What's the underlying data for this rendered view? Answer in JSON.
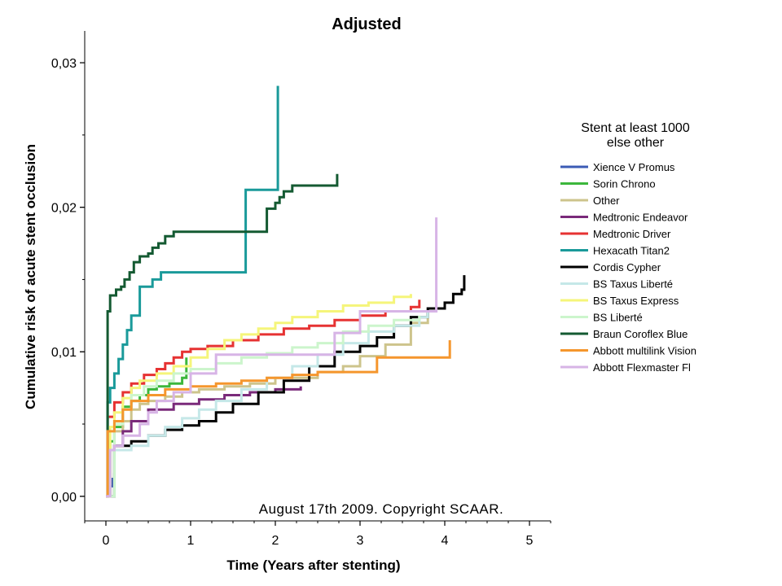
{
  "chart_data": {
    "type": "line",
    "title": "Adjusted",
    "xlabel": "Time (Years after stenting)",
    "ylabel": "Cumulative risk of acute stent occlusion",
    "xlim": [
      -0.25,
      5.25
    ],
    "ylim": [
      -0.0017,
      0.0322
    ],
    "x_ticks": [
      0,
      1,
      2,
      3,
      4,
      5
    ],
    "x_tick_labels": [
      "0",
      "1",
      "2",
      "3",
      "4",
      "5"
    ],
    "y_ticks": [
      0.0,
      0.01,
      0.02,
      0.03
    ],
    "y_tick_labels": [
      "0,00",
      "0,01",
      "0,02",
      "0,03"
    ],
    "grid": false,
    "annotation": "August 17th 2009. Copyright SCAAR.",
    "legend": {
      "title_line1": "Stent at least 1000",
      "title_line2": "else other",
      "position": "right"
    },
    "series": [
      {
        "name": "Xience V Promus",
        "color": "#3b5bb5",
        "x": [
          0,
          0.05,
          0.08,
          0.1
        ],
        "y": [
          0,
          0.0007,
          0.0012,
          0.0016
        ]
      },
      {
        "name": "Sorin Chrono",
        "color": "#3cb73c",
        "x": [
          0,
          0.05,
          0.1,
          0.2,
          0.3,
          0.4,
          0.5,
          0.6,
          0.75,
          0.9,
          0.95
        ],
        "y": [
          0,
          0.0038,
          0.0048,
          0.0062,
          0.0066,
          0.007,
          0.0074,
          0.0076,
          0.0078,
          0.0082,
          0.0096
        ]
      },
      {
        "name": "Other",
        "color": "#cdc48c",
        "x": [
          0,
          0.1,
          0.2,
          0.3,
          0.4,
          0.5,
          0.7,
          0.9,
          1.1,
          1.4,
          1.7,
          2.0,
          2.5,
          2.8,
          3.0,
          3.3,
          3.6,
          3.8
        ],
        "y": [
          0,
          0.0045,
          0.0052,
          0.006,
          0.0064,
          0.0066,
          0.0069,
          0.0072,
          0.0074,
          0.0076,
          0.0078,
          0.0082,
          0.0086,
          0.009,
          0.0097,
          0.0105,
          0.012,
          0.0128
        ]
      },
      {
        "name": "Medtronic Endeavor",
        "color": "#7a2a7a",
        "x": [
          0,
          0.1,
          0.2,
          0.3,
          0.5,
          0.8,
          1.1,
          1.4,
          1.7,
          2.0,
          2.3
        ],
        "y": [
          0,
          0.0035,
          0.0045,
          0.0052,
          0.006,
          0.0064,
          0.0067,
          0.007,
          0.0072,
          0.0074,
          0.0076
        ]
      },
      {
        "name": "Medtronic Driver",
        "color": "#e63232",
        "x": [
          0,
          0.02,
          0.1,
          0.2,
          0.3,
          0.45,
          0.6,
          0.7,
          0.8,
          0.9,
          1.0,
          1.2,
          1.5,
          1.8,
          2.1,
          2.4,
          2.7,
          3.0,
          3.3,
          3.6,
          3.7
        ],
        "y": [
          0,
          0.0055,
          0.0065,
          0.0072,
          0.0078,
          0.0084,
          0.0088,
          0.0092,
          0.0096,
          0.01,
          0.0102,
          0.0104,
          0.0108,
          0.0112,
          0.0116,
          0.0118,
          0.0122,
          0.0125,
          0.0128,
          0.0131,
          0.0136
        ]
      },
      {
        "name": "Hexacath Titan2",
        "color": "#1a9a9a",
        "x": [
          0,
          0.02,
          0.05,
          0.1,
          0.15,
          0.2,
          0.25,
          0.3,
          0.4,
          0.55,
          0.65,
          0.8,
          1.0,
          1.3,
          1.6,
          1.65,
          1.95,
          2.02,
          2.03
        ],
        "y": [
          0,
          0.0065,
          0.0075,
          0.0085,
          0.0095,
          0.0105,
          0.0115,
          0.0125,
          0.0145,
          0.015,
          0.0155,
          0.0155,
          0.0155,
          0.0155,
          0.0155,
          0.0212,
          0.0212,
          0.0212,
          0.0284
        ]
      },
      {
        "name": "Cordis Cypher",
        "color": "#000000",
        "x": [
          0,
          0.1,
          0.3,
          0.5,
          0.7,
          0.9,
          1.1,
          1.3,
          1.5,
          1.8,
          2.1,
          2.4,
          2.7,
          3.0,
          3.2,
          3.4,
          3.6,
          3.8,
          4.0,
          4.1,
          4.2,
          4.23
        ],
        "y": [
          0,
          0.0035,
          0.0038,
          0.0042,
          0.0046,
          0.0049,
          0.0052,
          0.0058,
          0.0064,
          0.0072,
          0.008,
          0.009,
          0.01,
          0.0104,
          0.011,
          0.0118,
          0.0124,
          0.013,
          0.0134,
          0.014,
          0.0143,
          0.0153
        ]
      },
      {
        "name": "BS Taxus Liberté",
        "color": "#c5e8e8",
        "x": [
          0,
          0.1,
          0.3,
          0.5,
          0.7,
          0.9,
          1.1,
          1.3,
          1.6,
          1.9,
          2.2,
          2.5,
          2.8,
          3.1,
          3.4,
          3.7,
          3.8
        ],
        "y": [
          0,
          0.0032,
          0.0035,
          0.0042,
          0.0048,
          0.0054,
          0.006,
          0.0066,
          0.0074,
          0.0082,
          0.009,
          0.0098,
          0.0106,
          0.0114,
          0.0118,
          0.0124,
          0.0128
        ]
      },
      {
        "name": "BS Taxus Express",
        "color": "#f5f57a",
        "x": [
          0,
          0.05,
          0.1,
          0.2,
          0.3,
          0.4,
          0.6,
          0.8,
          1.0,
          1.2,
          1.4,
          1.6,
          1.8,
          2.0,
          2.2,
          2.5,
          2.8,
          3.1,
          3.4,
          3.6
        ],
        "y": [
          0,
          0.0048,
          0.0058,
          0.0068,
          0.0075,
          0.008,
          0.0085,
          0.009,
          0.0096,
          0.0102,
          0.0108,
          0.0112,
          0.0116,
          0.012,
          0.0124,
          0.0128,
          0.0132,
          0.0134,
          0.0138,
          0.014
        ]
      },
      {
        "name": "BS Liberté",
        "color": "#ccf5cc",
        "x": [
          0,
          0.1,
          0.2,
          0.3,
          0.45,
          0.6,
          0.8,
          1.0,
          1.3,
          1.6,
          1.9,
          2.2,
          2.5,
          2.8,
          3.1,
          3.4,
          3.7
        ],
        "y": [
          0,
          0.005,
          0.006,
          0.007,
          0.0076,
          0.008,
          0.0085,
          0.0088,
          0.0092,
          0.0096,
          0.0099,
          0.0103,
          0.0106,
          0.0114,
          0.0118,
          0.0122,
          0.0125
        ]
      },
      {
        "name": "Braun Coroflex Blue",
        "color": "#145a32",
        "x": [
          0,
          0.02,
          0.05,
          0.12,
          0.18,
          0.22,
          0.28,
          0.33,
          0.4,
          0.5,
          0.55,
          0.62,
          0.7,
          0.8,
          0.9,
          1.5,
          1.85,
          1.9,
          2.0,
          2.05,
          2.1,
          2.2,
          2.3,
          2.45,
          2.72,
          2.73
        ],
        "y": [
          0,
          0.0128,
          0.0139,
          0.0143,
          0.0145,
          0.015,
          0.0155,
          0.0162,
          0.0166,
          0.0168,
          0.0172,
          0.0175,
          0.018,
          0.0183,
          0.0183,
          0.0183,
          0.0183,
          0.0199,
          0.0203,
          0.0207,
          0.0211,
          0.0215,
          0.0215,
          0.0215,
          0.0215,
          0.0223
        ]
      },
      {
        "name": "Abbott multilink Vision",
        "color": "#f5962d",
        "x": [
          0,
          0.02,
          0.1,
          0.2,
          0.3,
          0.5,
          0.7,
          1.0,
          1.3,
          1.6,
          1.9,
          2.2,
          2.5,
          2.8,
          3.2,
          3.5,
          3.8,
          4.05,
          4.06
        ],
        "y": [
          0,
          0.0045,
          0.0052,
          0.006,
          0.0066,
          0.007,
          0.0074,
          0.0076,
          0.0078,
          0.008,
          0.0082,
          0.0084,
          0.0086,
          0.0086,
          0.0096,
          0.0096,
          0.0096,
          0.0096,
          0.0108
        ]
      },
      {
        "name": "Abbott Flexmaster Fl",
        "color": "#d7b4e6",
        "x": [
          0,
          0.05,
          0.1,
          0.2,
          0.4,
          0.5,
          0.6,
          0.8,
          1.0,
          1.3,
          1.6,
          1.9,
          2.2,
          2.6,
          2.7,
          3.0,
          3.3,
          3.6,
          3.85,
          3.88,
          3.9
        ],
        "y": [
          0,
          0.0032,
          0.0035,
          0.0042,
          0.005,
          0.0058,
          0.0066,
          0.0072,
          0.0085,
          0.0098,
          0.0098,
          0.0098,
          0.0098,
          0.0098,
          0.0113,
          0.0128,
          0.0128,
          0.0128,
          0.0128,
          0.0128,
          0.0193
        ]
      }
    ]
  }
}
